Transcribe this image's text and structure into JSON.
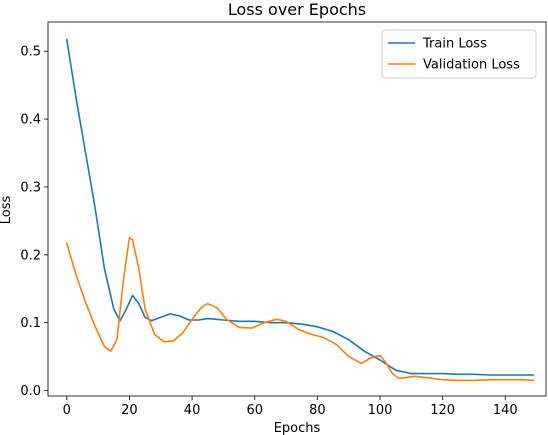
{
  "chart_data": {
    "type": "line",
    "title": "Loss over Epochs",
    "xlabel": "Epochs",
    "ylabel": "Loss",
    "xlim": [
      -6,
      153
    ],
    "ylim": [
      -0.008,
      0.543
    ],
    "xticks": [
      0,
      20,
      40,
      60,
      80,
      100,
      120,
      140
    ],
    "yticks": [
      0.0,
      0.1,
      0.2,
      0.3,
      0.4,
      0.5
    ],
    "xtick_labels": [
      "0",
      "20",
      "40",
      "60",
      "80",
      "100",
      "120",
      "140"
    ],
    "ytick_labels": [
      "0.0",
      "0.1",
      "0.2",
      "0.3",
      "0.4",
      "0.5"
    ],
    "grid": false,
    "legend": "top-right",
    "series": [
      {
        "name": "Train Loss",
        "color": "#1f77b4",
        "x": [
          0,
          3,
          6,
          9,
          12,
          15,
          17,
          19,
          21,
          23,
          25,
          27,
          30,
          33,
          36,
          39,
          42,
          45,
          50,
          55,
          60,
          65,
          70,
          75,
          80,
          85,
          90,
          95,
          100,
          105,
          110,
          115,
          120,
          125,
          130,
          135,
          140,
          145,
          149
        ],
        "y": [
          0.517,
          0.43,
          0.35,
          0.27,
          0.18,
          0.12,
          0.103,
          0.12,
          0.14,
          0.128,
          0.108,
          0.103,
          0.108,
          0.113,
          0.11,
          0.104,
          0.104,
          0.106,
          0.104,
          0.102,
          0.102,
          0.1,
          0.1,
          0.098,
          0.094,
          0.087,
          0.075,
          0.058,
          0.045,
          0.03,
          0.025,
          0.025,
          0.025,
          0.024,
          0.024,
          0.023,
          0.023,
          0.023,
          0.023
        ]
      },
      {
        "name": "Validation Loss",
        "color": "#ff7f0e",
        "x": [
          0,
          3,
          6,
          9,
          12,
          14,
          16,
          18,
          20,
          21,
          23,
          25,
          28,
          31,
          34,
          37,
          40,
          43,
          45,
          48,
          51,
          55,
          59,
          63,
          67,
          70,
          74,
          78,
          82,
          86,
          90,
          94,
          97,
          100,
          102,
          104,
          106,
          108,
          111,
          115,
          120,
          125,
          130,
          135,
          140,
          145,
          149
        ],
        "y": [
          0.217,
          0.17,
          0.13,
          0.095,
          0.065,
          0.058,
          0.075,
          0.16,
          0.225,
          0.222,
          0.18,
          0.12,
          0.083,
          0.072,
          0.073,
          0.085,
          0.105,
          0.123,
          0.128,
          0.122,
          0.105,
          0.093,
          0.092,
          0.1,
          0.105,
          0.102,
          0.09,
          0.083,
          0.078,
          0.068,
          0.05,
          0.04,
          0.048,
          0.052,
          0.04,
          0.025,
          0.018,
          0.019,
          0.021,
          0.019,
          0.016,
          0.015,
          0.015,
          0.016,
          0.016,
          0.016,
          0.015
        ]
      }
    ]
  }
}
